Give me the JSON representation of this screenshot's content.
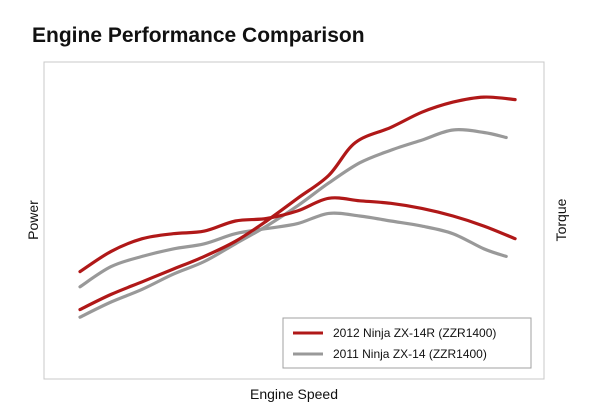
{
  "chart_data": {
    "type": "line",
    "title": "Engine Performance Comparison",
    "xlabel": "Engine Speed",
    "ylabel_left": "Power",
    "ylabel_right": "Torque",
    "xlim": [
      0,
      100
    ],
    "ylim": [
      0,
      100
    ],
    "grid": false,
    "legend_position": "bottom-right",
    "series": [
      {
        "name": "2012 Ninja ZX-14R (ZZR1400)",
        "measure": "Power",
        "color": "#b01818",
        "points": [
          [
            0,
            14
          ],
          [
            7,
            20
          ],
          [
            14,
            25
          ],
          [
            21,
            30
          ],
          [
            28,
            35
          ],
          [
            35,
            41
          ],
          [
            42,
            49
          ],
          [
            49,
            58
          ],
          [
            56,
            67
          ],
          [
            62,
            80
          ],
          [
            70,
            86
          ],
          [
            77,
            92
          ],
          [
            84,
            96
          ],
          [
            91,
            98
          ],
          [
            98,
            97
          ]
        ]
      },
      {
        "name": "2011 Ninja ZX-14 (ZZR1400)",
        "measure": "Power",
        "color": "#999999",
        "points": [
          [
            0,
            11
          ],
          [
            7,
            17
          ],
          [
            14,
            22
          ],
          [
            21,
            28
          ],
          [
            28,
            33
          ],
          [
            35,
            40
          ],
          [
            42,
            47
          ],
          [
            49,
            55
          ],
          [
            56,
            64
          ],
          [
            63,
            72
          ],
          [
            70,
            77
          ],
          [
            77,
            81
          ],
          [
            84,
            85
          ],
          [
            91,
            84
          ],
          [
            96,
            82
          ]
        ]
      },
      {
        "name": "2012 Ninja ZX-14R (ZZR1400)",
        "measure": "Torque",
        "color": "#b01818",
        "points": [
          [
            0,
            29
          ],
          [
            7,
            37
          ],
          [
            14,
            42
          ],
          [
            21,
            44
          ],
          [
            28,
            45
          ],
          [
            35,
            49
          ],
          [
            42,
            50
          ],
          [
            49,
            53
          ],
          [
            56,
            58
          ],
          [
            63,
            57
          ],
          [
            70,
            56
          ],
          [
            77,
            54
          ],
          [
            84,
            51
          ],
          [
            91,
            47
          ],
          [
            98,
            42
          ]
        ]
      },
      {
        "name": "2011 Ninja ZX-14 (ZZR1400)",
        "measure": "Torque",
        "color": "#999999",
        "points": [
          [
            0,
            23
          ],
          [
            7,
            31
          ],
          [
            14,
            35
          ],
          [
            21,
            38
          ],
          [
            28,
            40
          ],
          [
            35,
            44
          ],
          [
            42,
            46
          ],
          [
            49,
            48
          ],
          [
            56,
            52
          ],
          [
            63,
            51
          ],
          [
            70,
            49
          ],
          [
            77,
            47
          ],
          [
            84,
            44
          ],
          [
            91,
            38
          ],
          [
            96,
            35
          ]
        ]
      }
    ],
    "legend": [
      {
        "label": "2012 Ninja ZX-14R (ZZR1400)",
        "color": "#b01818"
      },
      {
        "label": "2011 Ninja ZX-14 (ZZR1400)",
        "color": "#999999"
      }
    ]
  }
}
